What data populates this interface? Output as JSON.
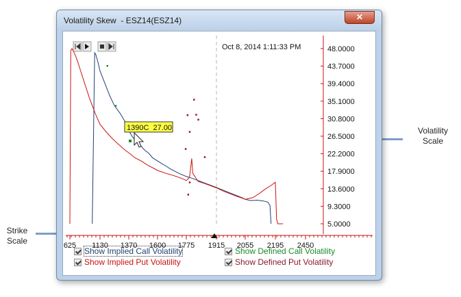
{
  "window": {
    "title": "Volatility Skew  - ESZ14(ESZ14)",
    "close_label": "✕"
  },
  "annotations": {
    "volatility_scale": "Volatility\nScale",
    "strike_scale": "Strike\nScale"
  },
  "chart": {
    "timestamp": "Oct 8, 2014 1:11:33 PM",
    "tooltip": "1390C  27.00",
    "y_ticks": [
      "48.0000",
      "43.7000",
      "39.4000",
      "35.1000",
      "30.8000",
      "26.5000",
      "22.2000",
      "17.9000",
      "13.6000",
      "9.3000",
      "5.0000"
    ],
    "x_ticks": [
      "625",
      "1130",
      "1370",
      "1600",
      "1775",
      "1915",
      "2055",
      "2195",
      "2450"
    ],
    "colors": {
      "call": "#1f3f73",
      "put": "#cc1111",
      "call_defined": "#1a8a2a",
      "put_defined": "#8a1a2a",
      "axis": "#cc1111"
    }
  },
  "chart_data": {
    "type": "line",
    "y_range": [
      5.0,
      48.0
    ],
    "x_ticks": [
      625,
      1130,
      1370,
      1600,
      1775,
      1915,
      2055,
      2195,
      2450
    ],
    "series": [
      {
        "name": "Implied Call Volatility",
        "points": [
          [
            1000,
            5.0
          ],
          [
            1040,
            47.0
          ],
          [
            1060,
            46.5
          ],
          [
            1090,
            45.0
          ],
          [
            1130,
            42.5
          ],
          [
            1170,
            39.5
          ],
          [
            1210,
            36.5
          ],
          [
            1250,
            34.0
          ],
          [
            1300,
            32.0
          ],
          [
            1340,
            30.0
          ],
          [
            1370,
            27.8
          ],
          [
            1400,
            26.3
          ],
          [
            1440,
            24.8
          ],
          [
            1470,
            24.0
          ],
          [
            1500,
            23.0
          ],
          [
            1530,
            22.3
          ],
          [
            1560,
            21.2
          ],
          [
            1590,
            20.6
          ],
          [
            1620,
            19.9
          ],
          [
            1650,
            19.2
          ],
          [
            1680,
            18.4
          ],
          [
            1710,
            17.8
          ],
          [
            1740,
            17.2
          ],
          [
            1775,
            16.6
          ],
          [
            1800,
            16.2
          ],
          [
            1830,
            15.6
          ],
          [
            1860,
            15.0
          ],
          [
            1890,
            14.4
          ],
          [
            1915,
            13.9
          ],
          [
            1950,
            13.2
          ],
          [
            1980,
            12.6
          ],
          [
            2010,
            12.0
          ],
          [
            2040,
            11.4
          ],
          [
            2055,
            11.0
          ],
          [
            2080,
            10.7
          ],
          [
            2110,
            10.8
          ],
          [
            2140,
            10.6
          ],
          [
            2160,
            10.3
          ],
          [
            2170,
            9.5
          ],
          [
            2175,
            5.0
          ]
        ]
      },
      {
        "name": "Implied Put Volatility",
        "points": [
          [
            625,
            5.0
          ],
          [
            640,
            47.5
          ],
          [
            660,
            48.0
          ],
          [
            690,
            47.2
          ],
          [
            720,
            46.2
          ],
          [
            760,
            44.6
          ],
          [
            800,
            42.8
          ],
          [
            850,
            40.5
          ],
          [
            900,
            38.2
          ],
          [
            950,
            36.0
          ],
          [
            1000,
            34.0
          ],
          [
            1050,
            32.1
          ],
          [
            1100,
            30.4
          ],
          [
            1130,
            29.4
          ],
          [
            1180,
            27.6
          ],
          [
            1230,
            26.0
          ],
          [
            1280,
            24.6
          ],
          [
            1330,
            23.3
          ],
          [
            1370,
            22.4
          ],
          [
            1420,
            21.2
          ],
          [
            1470,
            20.4
          ],
          [
            1520,
            19.4
          ],
          [
            1570,
            18.6
          ],
          [
            1600,
            18.1
          ],
          [
            1650,
            17.4
          ],
          [
            1700,
            16.8
          ],
          [
            1750,
            16.1
          ],
          [
            1775,
            15.6
          ],
          [
            1790,
            16.4
          ],
          [
            1800,
            21.0
          ],
          [
            1805,
            17.4
          ],
          [
            1830,
            15.4
          ],
          [
            1860,
            14.9
          ],
          [
            1890,
            14.3
          ],
          [
            1915,
            13.8
          ],
          [
            1950,
            13.0
          ],
          [
            1980,
            12.4
          ],
          [
            2010,
            11.8
          ],
          [
            2040,
            11.3
          ],
          [
            2055,
            11.0
          ],
          [
            2090,
            11.4
          ],
          [
            2120,
            12.4
          ],
          [
            2150,
            13.6
          ],
          [
            2175,
            14.4
          ],
          [
            2195,
            15.2
          ],
          [
            2205,
            6.2
          ],
          [
            2215,
            5.0
          ],
          [
            2260,
            5.0
          ]
        ]
      },
      {
        "name": "Defined Call Volatility",
        "points": [
          [
            1190,
            43.8
          ],
          [
            1260,
            34.0
          ]
        ]
      },
      {
        "name": "Defined Put Volatility",
        "points": [
          [
            1780,
            31.7
          ],
          [
            1810,
            35.5
          ],
          [
            1820,
            31.8
          ],
          [
            1830,
            30.6
          ],
          [
            1770,
            23.4
          ],
          [
            1790,
            27.6
          ],
          [
            1790,
            15.2
          ],
          [
            1783,
            12.2
          ],
          [
            1860,
            21.4
          ]
        ]
      }
    ],
    "legend": "bottom"
  },
  "checkboxes": [
    {
      "label": "Show Implied Call Volatility",
      "color": "#1f3f73",
      "checked": true
    },
    {
      "label": "Show Implied Put Volatility",
      "color": "#cc1111",
      "checked": true
    },
    {
      "label": "Show Defined Call Volatility",
      "color": "#1a8a2a",
      "checked": true
    },
    {
      "label": "Show Defined Put Volatility",
      "color": "#8a1a2a",
      "checked": true
    }
  ]
}
